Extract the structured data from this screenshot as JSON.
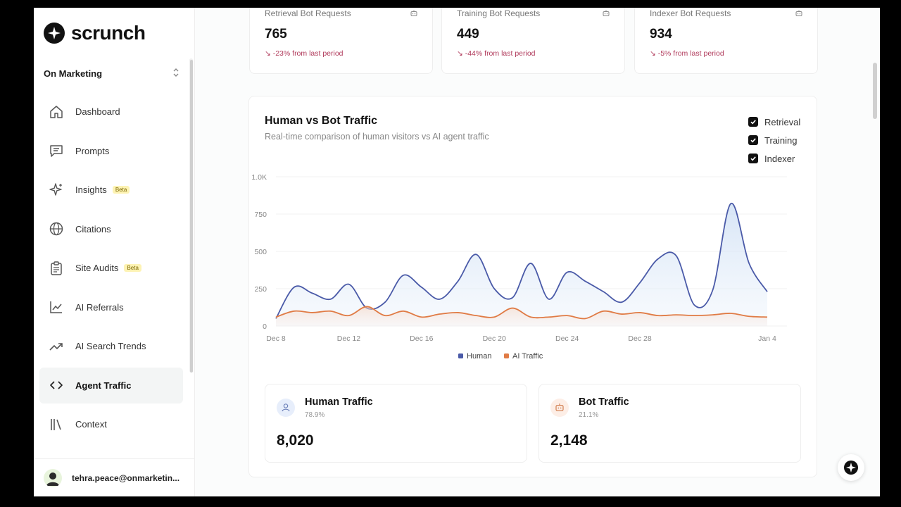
{
  "app": {
    "name": "scrunch"
  },
  "org": {
    "name": "On Marketing"
  },
  "nav": [
    {
      "label": "Dashboard",
      "icon": "home-icon"
    },
    {
      "label": "Prompts",
      "icon": "message-icon"
    },
    {
      "label": "Insights",
      "icon": "sparkle-icon",
      "badge": "Beta"
    },
    {
      "label": "Citations",
      "icon": "globe-icon"
    },
    {
      "label": "Site Audits",
      "icon": "clipboard-icon",
      "badge": "Beta"
    },
    {
      "label": "AI Referrals",
      "icon": "line-chart-icon"
    },
    {
      "label": "AI Search Trends",
      "icon": "trend-up-icon"
    },
    {
      "label": "Agent Traffic",
      "icon": "code-icon",
      "active": true
    },
    {
      "label": "Context",
      "icon": "library-icon"
    }
  ],
  "user": {
    "email": "tehra.peace@onmarketin..."
  },
  "kpis": [
    {
      "title": "Retrieval Bot Requests",
      "value": "765",
      "delta": "-23% from last period"
    },
    {
      "title": "Training Bot Requests",
      "value": "449",
      "delta": "-44% from last period"
    },
    {
      "title": "Indexer Bot Requests",
      "value": "934",
      "delta": "-5% from last period"
    }
  ],
  "chart_card": {
    "title": "Human vs Bot Traffic",
    "subtitle": "Real-time comparison of human visitors vs AI agent traffic",
    "filters": [
      {
        "label": "Retrieval",
        "checked": true
      },
      {
        "label": "Training",
        "checked": true
      },
      {
        "label": "Indexer",
        "checked": true
      }
    ]
  },
  "chart_data": {
    "type": "area",
    "x": [
      "Dec 8",
      "Dec 9",
      "Dec 10",
      "Dec 11",
      "Dec 12",
      "Dec 13",
      "Dec 14",
      "Dec 15",
      "Dec 16",
      "Dec 17",
      "Dec 18",
      "Dec 19",
      "Dec 20",
      "Dec 21",
      "Dec 22",
      "Dec 23",
      "Dec 24",
      "Dec 25",
      "Dec 26",
      "Dec 27",
      "Dec 28",
      "Dec 29",
      "Dec 30",
      "Dec 31",
      "Jan 1",
      "Jan 2",
      "Jan 3",
      "Jan 4"
    ],
    "x_tick_labels": [
      "Dec 8",
      "Dec 12",
      "Dec 16",
      "Dec 20",
      "Dec 24",
      "Dec 28",
      "Jan 4"
    ],
    "y_tick_labels": [
      "0",
      "250",
      "500",
      "750",
      "1.0K"
    ],
    "ylim": [
      0,
      1000
    ],
    "series": [
      {
        "name": "Human",
        "color": "#4a5aa8",
        "values": [
          50,
          260,
          220,
          180,
          280,
          120,
          160,
          340,
          260,
          180,
          300,
          480,
          250,
          190,
          420,
          180,
          360,
          300,
          230,
          160,
          290,
          450,
          470,
          140,
          240,
          820,
          420,
          230
        ]
      },
      {
        "name": "AI Traffic",
        "color": "#e07b45",
        "values": [
          60,
          100,
          90,
          100,
          70,
          130,
          70,
          100,
          60,
          80,
          90,
          70,
          60,
          120,
          60,
          60,
          70,
          50,
          100,
          80,
          90,
          70,
          75,
          70,
          75,
          85,
          65,
          60
        ]
      }
    ],
    "legend": "bottom"
  },
  "summary": [
    {
      "title": "Human Traffic",
      "pct": "78.9%",
      "value": "8,020",
      "icon": "user-icon",
      "tint": "#e7eefb"
    },
    {
      "title": "Bot Traffic",
      "pct": "21.1%",
      "value": "2,148",
      "icon": "bot-icon",
      "tint": "#fdeee6"
    }
  ]
}
